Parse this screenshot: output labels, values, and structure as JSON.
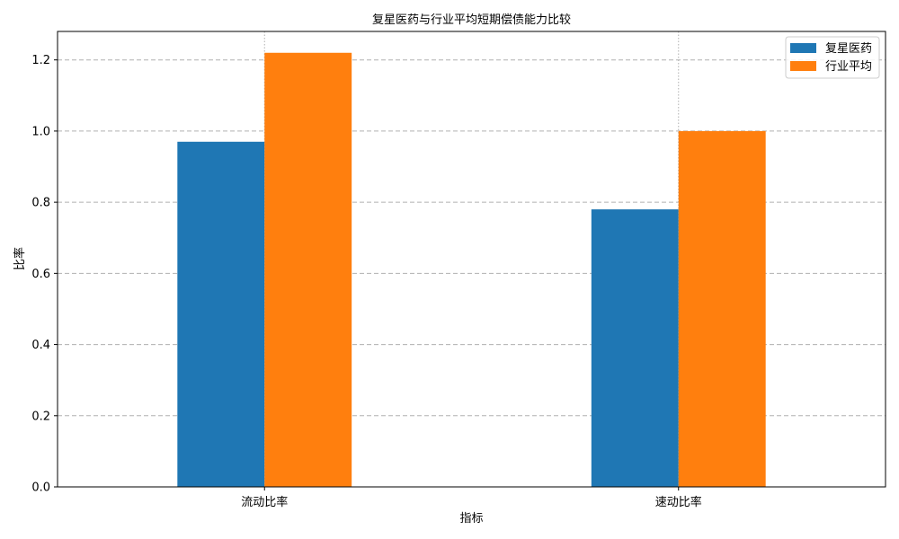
{
  "chart_data": {
    "type": "bar",
    "title": "复星医药与行业平均短期偿债能力比较",
    "xlabel": "指标",
    "ylabel": "比率",
    "categories": [
      "流动比率",
      "速动比率"
    ],
    "series": [
      {
        "name": "复星医药",
        "values": [
          0.97,
          0.78
        ],
        "color": "#1f77b4"
      },
      {
        "name": "行业平均",
        "values": [
          1.22,
          1.0
        ],
        "color": "#ff7f0e"
      }
    ],
    "ylim": [
      0,
      1.28
    ],
    "yticks": [
      "0.0",
      "0.2",
      "0.4",
      "0.6",
      "0.8",
      "1.0",
      "1.2"
    ],
    "grid": true,
    "legend_position": "top-right"
  }
}
